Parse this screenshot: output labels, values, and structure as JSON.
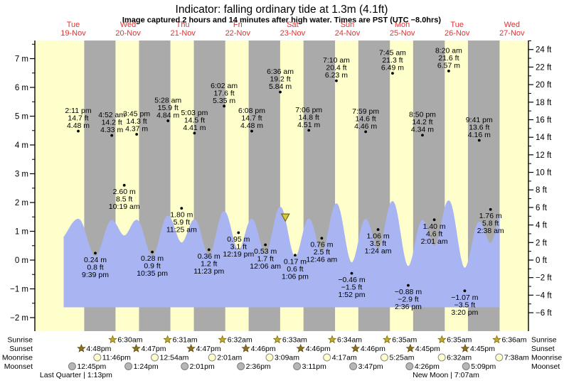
{
  "title": "Indicator: falling ordinary tide at 1.3m (4.1ft)",
  "subtitle": "Image captured 2 hours and 14 minutes after high water. Times are PST (UTC −8.0hrs)",
  "days": [
    {
      "weekday": "Tue",
      "date": "19-Nov"
    },
    {
      "weekday": "Wed",
      "date": "20-Nov"
    },
    {
      "weekday": "Thu",
      "date": "21-Nov"
    },
    {
      "weekday": "Fri",
      "date": "22-Nov"
    },
    {
      "weekday": "Sat",
      "date": "23-Nov"
    },
    {
      "weekday": "Sun",
      "date": "24-Nov"
    },
    {
      "weekday": "Mon",
      "date": "25-Nov"
    },
    {
      "weekday": "Tue",
      "date": "26-Nov"
    },
    {
      "weekday": "Wed",
      "date": "27-Nov"
    }
  ],
  "chart_data": {
    "type": "area",
    "title": "Indicator: falling ordinary tide at 1.3m (4.1ft)",
    "y_axis_left": {
      "unit": "m",
      "min": -2,
      "max": 7,
      "tick_step": 1
    },
    "y_axis_right": {
      "unit": "ft",
      "min": -6,
      "max": 24,
      "tick_step": 2
    },
    "x_axis": {
      "unit": "days",
      "first_day": "Tue 19-Nov",
      "last_day": "Wed 27-Nov"
    },
    "legend": "yellow bands = daylight, gray bands = night, blue area = tide height",
    "tide_events": [
      {
        "type": "high",
        "t": 14.183,
        "m": 4.48,
        "labels": [
          "2:11 pm",
          "14.7 ft",
          "4.48 m"
        ]
      },
      {
        "type": "low",
        "t": 21.65,
        "m": 0.24,
        "labels": [
          "0.24 m",
          "0.8 ft",
          "9:39 pm"
        ]
      },
      {
        "type": "high",
        "t": 28.867,
        "m": 4.33,
        "labels": [
          "4:52 am",
          "14.2 ft",
          "4.33 m"
        ]
      },
      {
        "type": "low",
        "t": 34.317,
        "m": 2.6,
        "labels": [
          "2.60 m",
          "8.5 ft",
          "10:19 am"
        ]
      },
      {
        "type": "high",
        "t": 39.75,
        "m": 4.37,
        "labels": [
          "3:45 pm",
          "14.3 ft",
          "4.37 m"
        ]
      },
      {
        "type": "low",
        "t": 46.583,
        "m": 0.28,
        "labels": [
          "0.28 m",
          "0.9 ft",
          "10:35 pm"
        ]
      },
      {
        "type": "high",
        "t": 53.467,
        "m": 4.84,
        "labels": [
          "5:28 am",
          "15.9 ft",
          "4.84 m"
        ]
      },
      {
        "type": "low",
        "t": 59.417,
        "m": 1.8,
        "labels": [
          "1.80 m",
          "5.9 ft",
          "11:25 am"
        ]
      },
      {
        "type": "high",
        "t": 65.05,
        "m": 4.41,
        "labels": [
          "5:03 pm",
          "14.5 ft",
          "4.41 m"
        ]
      },
      {
        "type": "low",
        "t": 71.383,
        "m": 0.36,
        "labels": [
          "0.36 m",
          "1.2 ft",
          "11:23 pm"
        ]
      },
      {
        "type": "high",
        "t": 78.033,
        "m": 5.35,
        "labels": [
          "6:02 am",
          "17.6 ft",
          "5.35 m"
        ]
      },
      {
        "type": "low",
        "t": 84.317,
        "m": 0.95,
        "labels": [
          "0.95 m",
          "3.1 ft",
          "12:19 pm"
        ]
      },
      {
        "type": "high",
        "t": 90.133,
        "m": 4.48,
        "labels": [
          "6:08 pm",
          "14.7 ft",
          "4.48 m"
        ]
      },
      {
        "type": "low",
        "t": 96.1,
        "m": 0.53,
        "labels": [
          "0.53 m",
          "1.7 ft",
          "12:06 am"
        ]
      },
      {
        "type": "high",
        "t": 102.6,
        "m": 5.84,
        "labels": [
          "6:36 am",
          "19.2 ft",
          "5.84 m"
        ]
      },
      {
        "type": "low",
        "t": 109.1,
        "m": 0.17,
        "labels": [
          "0.17 m",
          "0.6 ft",
          "1:06 pm"
        ]
      },
      {
        "type": "high",
        "t": 115.1,
        "m": 4.51,
        "labels": [
          "7:06 pm",
          "14.8 ft",
          "4.51 m"
        ]
      },
      {
        "type": "low",
        "t": 120.767,
        "m": 0.76,
        "labels": [
          "0.76 m",
          "2.5 ft",
          "12:46 am"
        ]
      },
      {
        "type": "high",
        "t": 127.167,
        "m": 6.23,
        "labels": [
          "7:10 am",
          "20.4 ft",
          "6.23 m"
        ]
      },
      {
        "type": "low",
        "t": 133.867,
        "m": -0.46,
        "labels": [
          "−0.46 m",
          "−1.5 ft",
          "1:52 pm"
        ]
      },
      {
        "type": "high",
        "t": 139.983,
        "m": 4.46,
        "labels": [
          "7:59 pm",
          "14.6 ft",
          "4.46 m"
        ]
      },
      {
        "type": "low",
        "t": 145.4,
        "m": 1.06,
        "labels": [
          "1.06 m",
          "3.5 ft",
          "1:24 am"
        ]
      },
      {
        "type": "high",
        "t": 151.75,
        "m": 6.49,
        "labels": [
          "7:45 am",
          "21.3 ft",
          "6.49 m"
        ]
      },
      {
        "type": "low",
        "t": 158.6,
        "m": -0.88,
        "labels": [
          "−0.88 m",
          "−2.9 ft",
          "2:36 pm"
        ]
      },
      {
        "type": "high",
        "t": 164.833,
        "m": 4.34,
        "labels": [
          "8:50 pm",
          "14.2 ft",
          "4.34 m"
        ]
      },
      {
        "type": "low",
        "t": 170.017,
        "m": 1.4,
        "labels": [
          "1.40 m",
          "4.6 ft",
          "2:01 am"
        ]
      },
      {
        "type": "high",
        "t": 176.333,
        "m": 6.57,
        "labels": [
          "8:20 am",
          "21.6 ft",
          "6.57 m"
        ]
      },
      {
        "type": "low",
        "t": 183.333,
        "m": -1.07,
        "labels": [
          "−1.07 m",
          "−3.5 ft",
          "3:20 pm"
        ]
      },
      {
        "type": "high",
        "t": 189.683,
        "m": 4.16,
        "labels": [
          "9:41 pm",
          "13.6 ft",
          "4.16 m"
        ]
      },
      {
        "type": "low",
        "t": 194.633,
        "m": 1.76,
        "labels": [
          "1.76 m",
          "5.8 ft",
          "2:38 am"
        ]
      }
    ],
    "current_indicator": {
      "t": 104.833,
      "m": 1.3,
      "ft": 4.1,
      "state": "falling"
    },
    "curve": {
      "start": {
        "t": 5.5,
        "m": 2.0
      },
      "end": {
        "t": 200.85,
        "m": 6.6
      },
      "clip": [
        7.95,
        198.5
      ]
    }
  },
  "astro": {
    "rows": [
      {
        "label": "Sunrise",
        "marker": "sunrise-star",
        "entries": [
          {
            "time": "6:30am",
            "t": 30.5
          },
          {
            "time": "6:31am",
            "t": 54.517
          },
          {
            "time": "6:32am",
            "t": 78.533
          },
          {
            "time": "6:33am",
            "t": 102.55
          },
          {
            "time": "6:34am",
            "t": 126.567
          },
          {
            "time": "6:35am",
            "t": 150.583
          },
          {
            "time": "6:35am",
            "t": 174.583
          },
          {
            "time": "6:36am",
            "t": 198.6
          }
        ]
      },
      {
        "label": "Sunset",
        "marker": "sunset-star",
        "entries": [
          {
            "time": "4:48pm",
            "t": 16.8
          },
          {
            "time": "4:47pm",
            "t": 40.783
          },
          {
            "time": "4:47pm",
            "t": 64.783
          },
          {
            "time": "4:46pm",
            "t": 88.767
          },
          {
            "time": "4:46pm",
            "t": 112.767
          },
          {
            "time": "4:46pm",
            "t": 136.767
          },
          {
            "time": "4:45pm",
            "t": 160.75
          },
          {
            "time": "4:45pm",
            "t": 184.75
          }
        ]
      },
      {
        "label": "Moonrise",
        "marker": "moonrise-circle",
        "entries": [
          {
            "time": "11:46pm",
            "t": 23.767
          },
          {
            "time": "12:54am",
            "t": 48.9
          },
          {
            "time": "2:01am",
            "t": 74.017
          },
          {
            "time": "3:09am",
            "t": 99.15
          },
          {
            "time": "4:17am",
            "t": 124.283
          },
          {
            "time": "5:25am",
            "t": 149.417
          },
          {
            "time": "6:32am",
            "t": 174.533
          },
          {
            "time": "7:38am",
            "t": 199.633
          }
        ]
      },
      {
        "label": "Moonset",
        "marker": "moonset-circle",
        "entries": [
          {
            "time": "12:45pm",
            "t": 12.75
          },
          {
            "time": "1:24pm",
            "t": 37.4
          },
          {
            "time": "2:01pm",
            "t": 62.017
          },
          {
            "time": "2:36pm",
            "t": 86.6
          },
          {
            "time": "3:11pm",
            "t": 111.183
          },
          {
            "time": "3:47pm",
            "t": 135.783
          },
          {
            "time": "4:26pm",
            "t": 160.433
          },
          {
            "time": "5:09pm",
            "t": 185.15
          }
        ]
      }
    ],
    "phases": [
      {
        "phase": "Last Quarter",
        "time": "1:13pm",
        "t": 13.217
      },
      {
        "phase": "New Moon",
        "time": "7:07am",
        "t": 175.117
      }
    ]
  },
  "colors": {
    "day_band": "#ffffcc",
    "night_band": "#aaaaaa",
    "water": "#a9b4f2",
    "date_red": "#e03232",
    "sunrise_star": "#c3ac28",
    "sunrise_star_edge": "#7d6c15",
    "sunset_star": "#8f701f",
    "sunset_star_edge": "#5e4a10",
    "moonrise_fill": "#ffffcc",
    "moonrise_edge": "#8a8a8a",
    "moonset_fill": "#b6b6b6",
    "moonset_edge": "#7d7d7d",
    "indicator_fill": "#d6ca3a",
    "indicator_edge": "#6f6a18",
    "axis": "#000000"
  }
}
